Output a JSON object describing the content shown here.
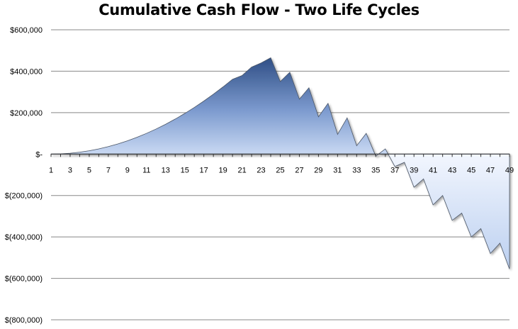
{
  "chart_data": {
    "type": "area",
    "title": "Cumulative Cash Flow - Two Life Cycles",
    "xlabel": "",
    "ylabel": "",
    "grid": true,
    "legend": "none",
    "ylim": [
      -800000,
      600000
    ],
    "y_ticks": [
      {
        "value": 600000,
        "label": "$600,000"
      },
      {
        "value": 400000,
        "label": "$400,000"
      },
      {
        "value": 200000,
        "label": "$200,000"
      },
      {
        "value": 0,
        "label": "$-"
      },
      {
        "value": -200000,
        "label": "$(200,000)"
      },
      {
        "value": -400000,
        "label": "$(400,000)"
      },
      {
        "value": -600000,
        "label": "$(600,000)"
      },
      {
        "value": -800000,
        "label": "$(800,000)"
      }
    ],
    "x_tick_labels": [
      "1",
      "3",
      "5",
      "7",
      "9",
      "11",
      "13",
      "15",
      "17",
      "19",
      "21",
      "23",
      "25",
      "27",
      "29",
      "31",
      "33",
      "35",
      "37",
      "39",
      "41",
      "43",
      "45",
      "47",
      "49"
    ],
    "x": [
      1,
      2,
      3,
      4,
      5,
      6,
      7,
      8,
      9,
      10,
      11,
      12,
      13,
      14,
      15,
      16,
      17,
      18,
      19,
      20,
      21,
      22,
      23,
      24,
      25,
      26,
      27,
      28,
      29,
      30,
      31,
      32,
      33,
      34,
      35,
      36,
      37,
      38,
      39,
      40,
      41,
      42,
      43,
      44,
      45,
      46,
      47,
      48,
      49
    ],
    "values": [
      0,
      1000,
      4000,
      9000,
      16000,
      25000,
      36000,
      49000,
      64000,
      81000,
      100000,
      121000,
      144000,
      169000,
      196000,
      225000,
      256000,
      289000,
      324000,
      361000,
      379000,
      420000,
      440000,
      465000,
      350000,
      395000,
      265000,
      320000,
      180000,
      245000,
      95000,
      175000,
      40000,
      100000,
      -10000,
      25000,
      -60000,
      -40000,
      -160000,
      -120000,
      -245000,
      -200000,
      -320000,
      -285000,
      -400000,
      -360000,
      -480000,
      -430000,
      -555000
    ],
    "colors": {
      "fill_top": "#3a5a8e",
      "fill_mid": "#8eaad6",
      "fill_light": "#dde8fb",
      "edge": "#4a5566",
      "gridline": "#888888"
    }
  }
}
